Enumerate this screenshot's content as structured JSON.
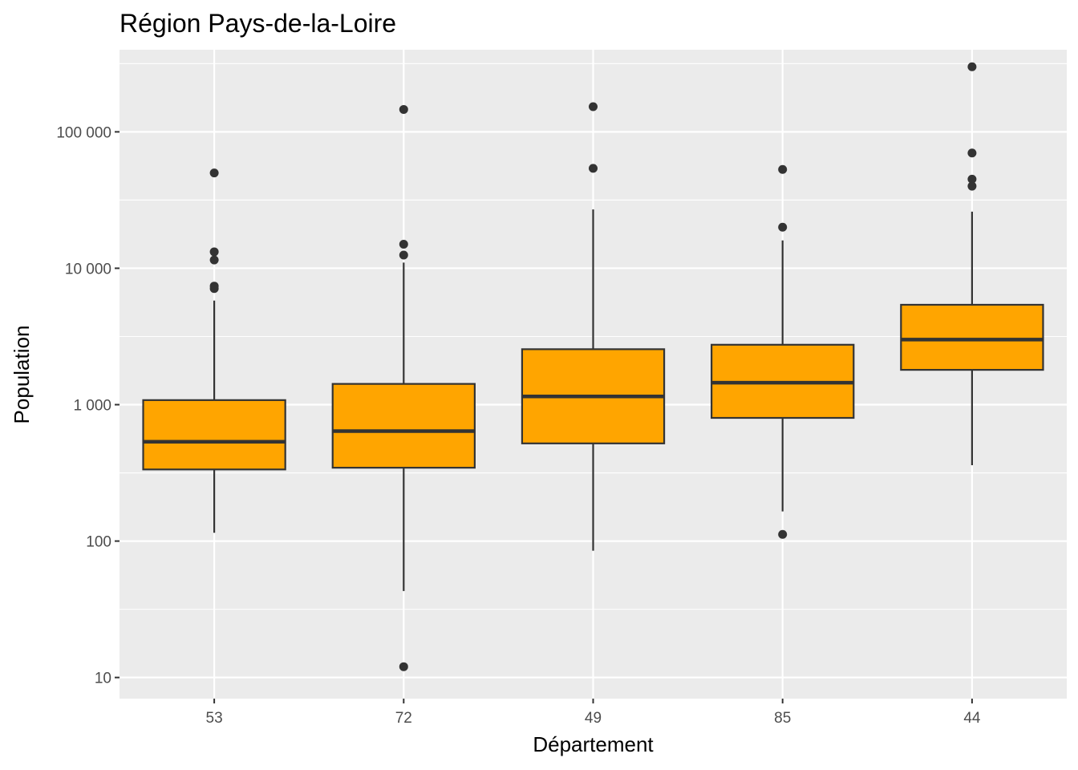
{
  "chart_data": {
    "type": "box",
    "title": "Région Pays-de-la-Loire",
    "xlabel": "Département",
    "ylabel": "Population",
    "y_scale": "log10",
    "ylim": [
      7,
      400000
    ],
    "grid": true,
    "y_ticks": [
      {
        "value": 10,
        "label": "10"
      },
      {
        "value": 100,
        "label": "100"
      },
      {
        "value": 1000,
        "label": "1 000"
      },
      {
        "value": 10000,
        "label": "10 000"
      },
      {
        "value": 100000,
        "label": "100 000"
      }
    ],
    "categories": [
      "53",
      "72",
      "49",
      "85",
      "44"
    ],
    "box_fill": "#FFA500",
    "box_stroke": "#333333",
    "boxes": [
      {
        "category": "53",
        "whisker_low": 115,
        "q1": 335,
        "median": 535,
        "q3": 1080,
        "whisker_high": 5800,
        "outliers": [
          50000,
          13200,
          11500,
          7400,
          7100
        ]
      },
      {
        "category": "72",
        "whisker_low": 43,
        "q1": 345,
        "median": 640,
        "q3": 1420,
        "whisker_high": 11000,
        "outliers": [
          146000,
          15000,
          12500,
          12
        ]
      },
      {
        "category": "49",
        "whisker_low": 85,
        "q1": 520,
        "median": 1150,
        "q3": 2550,
        "whisker_high": 27000,
        "outliers": [
          153000,
          54000
        ]
      },
      {
        "category": "85",
        "whisker_low": 165,
        "q1": 800,
        "median": 1450,
        "q3": 2750,
        "whisker_high": 16000,
        "outliers": [
          53000,
          20000,
          112
        ]
      },
      {
        "category": "44",
        "whisker_low": 360,
        "q1": 1800,
        "median": 3000,
        "q3": 5400,
        "whisker_high": 26000,
        "outliers": [
          300000,
          70000,
          45000,
          40000
        ]
      }
    ]
  }
}
